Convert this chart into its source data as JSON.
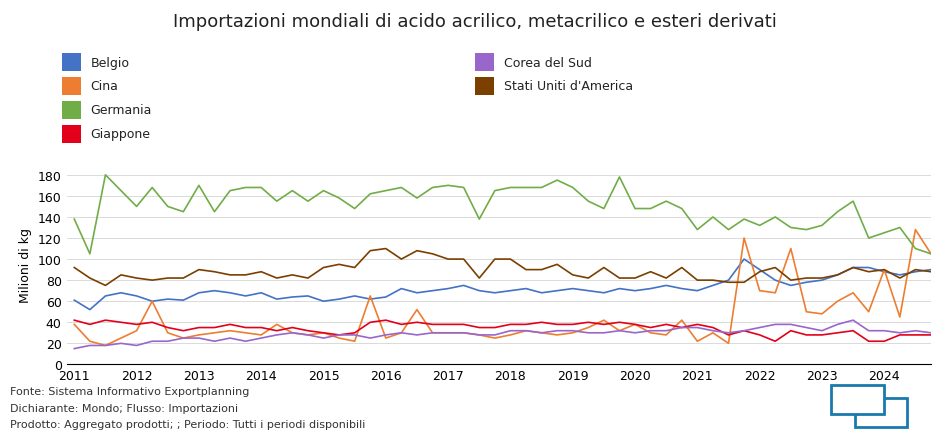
{
  "title": "Importazioni mondiali di acido acrilico, metacrilico e esteri derivati",
  "ylabel": "Milioni di kg",
  "footer_lines": [
    "Fonte: Sistema Informativo Exportplanning",
    "Dichiarante: Mondo; Flusso: Importazioni",
    "Prodotto: Aggregato prodotti; ; Periodo: Tutti i periodi disponibili"
  ],
  "series": {
    "Belgio": {
      "color": "#4472C4",
      "data": [
        61,
        52,
        65,
        68,
        65,
        60,
        62,
        61,
        68,
        70,
        68,
        65,
        68,
        62,
        64,
        65,
        60,
        62,
        65,
        62,
        64,
        72,
        68,
        70,
        72,
        75,
        70,
        68,
        70,
        72,
        68,
        70,
        72,
        70,
        68,
        72,
        70,
        72,
        75,
        72,
        70,
        75,
        80,
        100,
        90,
        80,
        75,
        78,
        80,
        85,
        92,
        92,
        88,
        85,
        88,
        90
      ]
    },
    "Cina": {
      "color": "#ED7D31",
      "data": [
        38,
        22,
        18,
        25,
        32,
        60,
        30,
        25,
        28,
        30,
        32,
        30,
        28,
        38,
        30,
        28,
        30,
        25,
        22,
        65,
        25,
        30,
        52,
        30,
        30,
        30,
        28,
        25,
        28,
        32,
        30,
        28,
        30,
        35,
        42,
        32,
        38,
        30,
        28,
        42,
        22,
        30,
        20,
        120,
        70,
        68,
        110,
        50,
        48,
        60,
        68,
        50,
        90,
        45,
        128,
        105
      ]
    },
    "Germania": {
      "color": "#70AD47",
      "data": [
        138,
        105,
        180,
        165,
        150,
        168,
        150,
        145,
        170,
        145,
        165,
        168,
        168,
        155,
        165,
        155,
        165,
        158,
        148,
        162,
        165,
        168,
        158,
        168,
        170,
        168,
        138,
        165,
        168,
        168,
        168,
        175,
        168,
        155,
        148,
        178,
        148,
        148,
        155,
        148,
        128,
        140,
        128,
        138,
        132,
        140,
        130,
        128,
        132,
        145,
        155,
        120,
        125,
        130,
        110,
        105
      ]
    },
    "Giappone": {
      "color": "#E3001B",
      "data": [
        42,
        38,
        42,
        40,
        38,
        40,
        35,
        32,
        35,
        35,
        38,
        35,
        35,
        32,
        35,
        32,
        30,
        28,
        30,
        40,
        42,
        38,
        40,
        38,
        38,
        38,
        35,
        35,
        38,
        38,
        40,
        38,
        38,
        40,
        38,
        40,
        38,
        35,
        38,
        35,
        38,
        35,
        28,
        32,
        28,
        22,
        32,
        28,
        28,
        30,
        32,
        22,
        22,
        28,
        28,
        28
      ]
    },
    "Corea del Sud": {
      "color": "#9966CC",
      "data": [
        15,
        18,
        18,
        20,
        18,
        22,
        22,
        25,
        25,
        22,
        25,
        22,
        25,
        28,
        30,
        28,
        25,
        28,
        28,
        25,
        28,
        30,
        28,
        30,
        30,
        30,
        28,
        28,
        32,
        32,
        30,
        32,
        32,
        30,
        30,
        32,
        30,
        32,
        32,
        35,
        35,
        32,
        30,
        32,
        35,
        38,
        38,
        35,
        32,
        38,
        42,
        32,
        32,
        30,
        32,
        30
      ]
    },
    "Stati Uniti d'America": {
      "color": "#7B3F00",
      "data": [
        92,
        82,
        75,
        85,
        82,
        80,
        82,
        82,
        90,
        88,
        85,
        85,
        88,
        82,
        85,
        82,
        92,
        95,
        92,
        108,
        110,
        100,
        108,
        105,
        100,
        100,
        82,
        100,
        100,
        90,
        90,
        95,
        85,
        82,
        92,
        82,
        82,
        88,
        82,
        92,
        80,
        80,
        78,
        78,
        88,
        92,
        80,
        82,
        82,
        85,
        92,
        88,
        90,
        82,
        90,
        88
      ]
    }
  },
  "ylim": [
    0,
    190
  ],
  "yticks": [
    0,
    20,
    40,
    60,
    80,
    100,
    120,
    140,
    160,
    180
  ],
  "xtick_labels": [
    "2011",
    "2012",
    "2013",
    "2014",
    "2015",
    "2016",
    "2017",
    "2018",
    "2019",
    "2020",
    "2021",
    "2022",
    "2023",
    "2024"
  ],
  "xtick_positions": [
    0,
    4,
    8,
    12,
    16,
    20,
    24,
    28,
    32,
    36,
    40,
    44,
    48,
    52
  ],
  "background_color": "#FFFFFF",
  "legend_col1": [
    "Belgio",
    "Cina",
    "Germania",
    "Giappone"
  ],
  "legend_col2": [
    "Corea del Sud",
    "Stati Uniti d'America"
  ]
}
